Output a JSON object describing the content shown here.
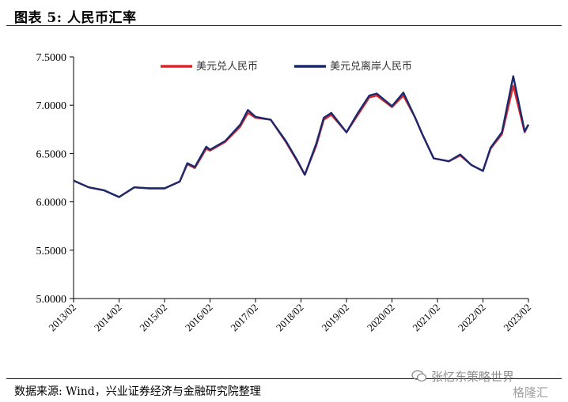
{
  "header": {
    "title": "图表 5:  人民币汇率"
  },
  "footer": {
    "source": "数据来源:  Wind，兴业证券经济与金融研究院整理"
  },
  "watermark": {
    "account": "张忆东策略世界",
    "brand": "格隆汇"
  },
  "chart_data": {
    "type": "line",
    "title": "",
    "xlabel": "",
    "ylabel": "",
    "ylim": [
      5.0,
      7.5
    ],
    "yticks": [
      "7.5000",
      "7.0000",
      "6.5000",
      "6.0000",
      "5.5000",
      "5.0000"
    ],
    "yticks_values": [
      7.5,
      7.0,
      6.5,
      6.0,
      5.5,
      5.0
    ],
    "xticks": [
      "2013/02",
      "2014/02",
      "2015/02",
      "2016/02",
      "2017/02",
      "2018/02",
      "2019/02",
      "2020/02",
      "2021/02",
      "2022/02",
      "2023/02"
    ],
    "grid": false,
    "legend_position": "top",
    "x": [
      "2013/02",
      "2013/06",
      "2013/10",
      "2014/02",
      "2014/06",
      "2014/10",
      "2015/02",
      "2015/06",
      "2015/08",
      "2015/10",
      "2016/01",
      "2016/02",
      "2016/06",
      "2016/10",
      "2016/12",
      "2017/02",
      "2017/06",
      "2017/10",
      "2018/01",
      "2018/03",
      "2018/06",
      "2018/08",
      "2018/10",
      "2019/02",
      "2019/05",
      "2019/08",
      "2019/10",
      "2020/02",
      "2020/05",
      "2020/08",
      "2020/10",
      "2021/01",
      "2021/05",
      "2021/08",
      "2021/11",
      "2022/02",
      "2022/04",
      "2022/07",
      "2022/10",
      "2023/01",
      "2023/02"
    ],
    "series": [
      {
        "name": "美元兑人民币",
        "color": "#e0252b",
        "values": [
          6.22,
          6.15,
          6.12,
          6.05,
          6.15,
          6.14,
          6.14,
          6.21,
          6.39,
          6.35,
          6.55,
          6.53,
          6.62,
          6.78,
          6.92,
          6.87,
          6.85,
          6.62,
          6.42,
          6.28,
          6.58,
          6.85,
          6.9,
          6.72,
          6.9,
          7.08,
          7.1,
          6.98,
          7.1,
          6.88,
          6.7,
          6.45,
          6.42,
          6.48,
          6.38,
          6.32,
          6.55,
          6.7,
          7.2,
          6.72,
          6.8
        ]
      },
      {
        "name": "美元兑离岸人民币",
        "color": "#1a2a6c",
        "values": [
          6.22,
          6.15,
          6.12,
          6.05,
          6.15,
          6.14,
          6.14,
          6.21,
          6.4,
          6.36,
          6.57,
          6.54,
          6.63,
          6.8,
          6.95,
          6.88,
          6.85,
          6.63,
          6.43,
          6.28,
          6.6,
          6.87,
          6.92,
          6.72,
          6.92,
          7.1,
          7.12,
          6.99,
          7.13,
          6.88,
          6.7,
          6.45,
          6.42,
          6.49,
          6.38,
          6.32,
          6.56,
          6.72,
          7.3,
          6.73,
          6.8
        ]
      }
    ]
  }
}
